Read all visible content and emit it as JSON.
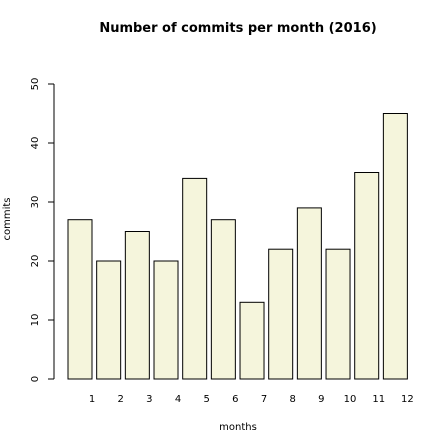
{
  "chart_data": {
    "type": "bar",
    "title": "Number of commits per month (2016)",
    "xlabel": "months",
    "ylabel": "commits",
    "categories": [
      "1",
      "2",
      "3",
      "4",
      "5",
      "6",
      "7",
      "8",
      "9",
      "10",
      "11",
      "12"
    ],
    "values": [
      27,
      20,
      25,
      20,
      34,
      27,
      13,
      22,
      29,
      22,
      35,
      45
    ],
    "ylim": [
      0,
      50
    ],
    "yticks": [
      "0",
      "10",
      "20",
      "30",
      "40",
      "50"
    ],
    "grid": false,
    "legend": "none",
    "colors": {
      "bar_fill": "#f5f5dc",
      "bar_stroke": "#000000",
      "axis": "#000000"
    }
  }
}
